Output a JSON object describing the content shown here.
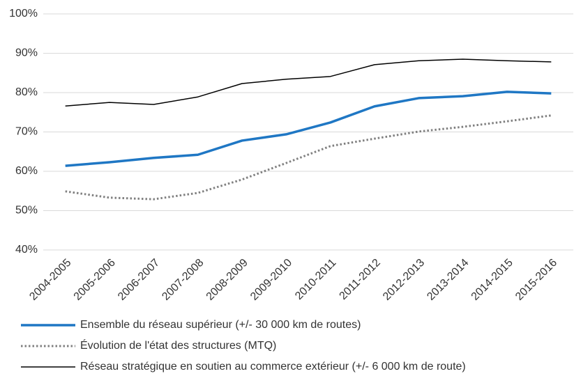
{
  "chart_data": {
    "type": "line",
    "categories": [
      "2004-2005",
      "2005-2006",
      "2006-2007",
      "2007-2008",
      "2008-2009",
      "2009-2010",
      "2010-2011",
      "2011-2012",
      "2012-2013",
      "2013-2014",
      "2014-2015",
      "2015-2016"
    ],
    "series": [
      {
        "name": "Ensemble du réseau supérieur (+/- 30 000 km de routes)",
        "color": "#1f77c4",
        "style": "solid",
        "values": [
          61.4,
          62.3,
          63.4,
          64.2,
          67.8,
          69.4,
          72.4,
          76.5,
          78.6,
          79.1,
          80.2,
          79.8
        ]
      },
      {
        "name": "Évolution de l'état des structures (MTQ)",
        "color": "#808080",
        "style": "dotted",
        "values": [
          54.9,
          53.3,
          52.9,
          54.5,
          57.9,
          62.1,
          66.4,
          68.3,
          70.1,
          71.3,
          72.7,
          74.2
        ]
      },
      {
        "name": "Réseau stratégique en soutien au commerce extérieur (+/- 6 000 km de route)",
        "color": "#000000",
        "style": "solid",
        "values": [
          76.6,
          77.5,
          77.0,
          78.9,
          82.3,
          83.4,
          84.1,
          87.1,
          88.1,
          88.5,
          88.1,
          87.8
        ]
      }
    ],
    "ylim": [
      40,
      100
    ],
    "yticks": [
      {
        "value": 40,
        "label": "40%"
      },
      {
        "value": 50,
        "label": "50%"
      },
      {
        "value": 60,
        "label": "60%"
      },
      {
        "value": 70,
        "label": "70%"
      },
      {
        "value": 80,
        "label": "80%"
      },
      {
        "value": 90,
        "label": "90%"
      },
      {
        "value": 100,
        "label": "100%"
      }
    ],
    "grid": true
  }
}
